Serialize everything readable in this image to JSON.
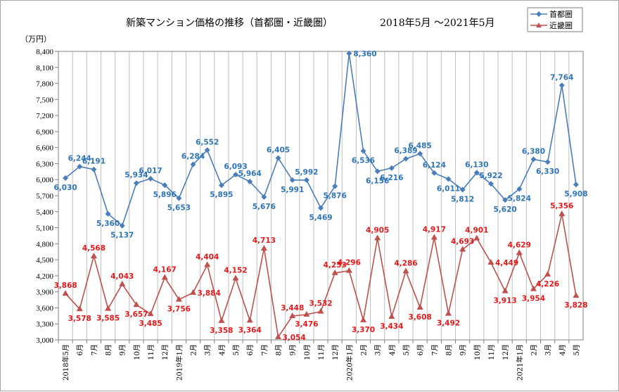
{
  "chart_data": {
    "type": "line",
    "title": "新築マンション価格の推移（首都圏・近畿圏）",
    "subtitle": "2018年5月 ～2021年5月",
    "ylabel": "（万円）",
    "ylim": [
      3000,
      8400
    ],
    "yticks": [
      3000,
      3300,
      3600,
      3900,
      4200,
      4500,
      4800,
      5100,
      5400,
      5700,
      6000,
      6300,
      6600,
      6900,
      7200,
      7500,
      7800,
      8100,
      8400
    ],
    "ytick_labels": [
      "3,000",
      "3,300",
      "3,600",
      "3,900",
      "4,200",
      "4,500",
      "4,800",
      "5,100",
      "5,400",
      "5,700",
      "6,000",
      "6,300",
      "6,600",
      "6,900",
      "7,200",
      "7,500",
      "7,800",
      "8,100",
      "8,400"
    ],
    "grid": "vertical",
    "legend_position": "top-right",
    "categories": [
      "2018年5月",
      "6月",
      "7月",
      "8月",
      "9月",
      "10月",
      "11月",
      "12月",
      "2019年1月",
      "2月",
      "3月",
      "4月",
      "5月",
      "6月",
      "7月",
      "8月",
      "9月",
      "10月",
      "11月",
      "12月",
      "2020年1月",
      "2月",
      "3月",
      "4月",
      "5月",
      "6月",
      "7月",
      "8月",
      "9月",
      "10月",
      "11月",
      "12月",
      "2021年1月",
      "2月",
      "3月",
      "4月",
      "5月"
    ],
    "series": [
      {
        "name": "首都圏",
        "color": "#4a7ebb",
        "label_color": "#2e75b6",
        "marker": "diamond",
        "values": [
          6030,
          6244,
          6191,
          5360,
          5137,
          5934,
          6017,
          5896,
          5653,
          6284,
          6552,
          5895,
          6093,
          5964,
          5676,
          6405,
          5991,
          5992,
          5469,
          5876,
          8360,
          6536,
          6156,
          6216,
          6389,
          6485,
          6124,
          6011,
          5812,
          6130,
          5922,
          5620,
          5824,
          6380,
          6330,
          7764,
          5908
        ],
        "labels": [
          "6,030",
          "6,244",
          "6,191",
          "5,360",
          "5,137",
          "5,934",
          "6,017",
          "5,896",
          "5,653",
          "6,284",
          "6,552",
          "5,895",
          "6,093",
          "5,964",
          "5,676",
          "6,405",
          "5,991",
          "5,992",
          "5,469",
          "5,876",
          "8,360",
          "6,536",
          "6,156",
          "6,216",
          "6,389",
          "6,485",
          "6,124",
          "6,011",
          "5,812",
          "6,130",
          "5,922",
          "5,620",
          "5,824",
          "6,380",
          "6,330",
          "7,764",
          "5,908"
        ],
        "label_pos": [
          "below",
          "above",
          "above",
          "below",
          "below",
          "above",
          "above",
          "below",
          "below",
          "above",
          "above",
          "below",
          "above",
          "above",
          "below",
          "above",
          "below",
          "above",
          "below",
          "below",
          "right",
          "below",
          "below",
          "below",
          "above",
          "above",
          "above",
          "below",
          "below",
          "above",
          "above",
          "below",
          "below",
          "above",
          "below",
          "above",
          "below"
        ]
      },
      {
        "name": "近畿圏",
        "color": "#c0504d",
        "label_color": "#e31a1c",
        "marker": "triangle",
        "values": [
          3868,
          3578,
          4568,
          3585,
          4043,
          3657,
          3485,
          4167,
          3756,
          3884,
          4404,
          3358,
          4152,
          3364,
          4713,
          3054,
          3448,
          3476,
          3532,
          4253,
          4296,
          3370,
          4905,
          3434,
          4286,
          3608,
          4917,
          3492,
          4693,
          4901,
          4449,
          3913,
          4629,
          3954,
          4226,
          5356,
          3828
        ],
        "labels": [
          "3,868",
          "3,578",
          "4,568",
          "3,585",
          "4,043",
          "3,657",
          "3,485",
          "4,167",
          "3,756",
          "3,884",
          "4,404",
          "3,358",
          "4,152",
          "3,364",
          "4,713",
          "3,054",
          "3,448",
          "3,476",
          "3,532",
          "4,253",
          "4,296",
          "3,370",
          "4,905",
          "3,434",
          "4,286",
          "3,608",
          "4,917",
          "3,492",
          "4,693",
          "4,901",
          "4,449",
          "3,913",
          "4,629",
          "3,954",
          "4,226",
          "5,356",
          "3,828"
        ],
        "label_pos": [
          "above",
          "below",
          "above",
          "below",
          "above",
          "below",
          "below",
          "above",
          "below",
          "right",
          "above",
          "below",
          "above",
          "below",
          "above",
          "right",
          "above",
          "below",
          "above",
          "above",
          "above",
          "below",
          "above",
          "below",
          "above",
          "below",
          "above",
          "below",
          "above",
          "above",
          "right",
          "below",
          "above",
          "below",
          "below",
          "above",
          "below"
        ]
      }
    ]
  }
}
